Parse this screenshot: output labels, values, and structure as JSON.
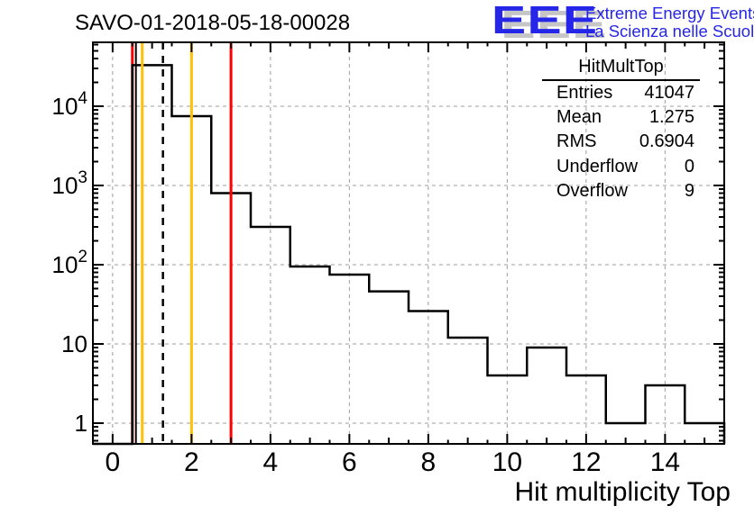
{
  "page": {
    "title": "SAVO-01-2018-05-18-00028"
  },
  "logo": {
    "acronym": "EEE",
    "line1": "Extreme Energy Events",
    "line2": "La Scienza nelle Scuole",
    "blue": "#2626e8",
    "shadow": "#c6c6c6"
  },
  "stats": {
    "title": "HitMultTop",
    "rows": [
      {
        "label": "Entries",
        "value": "41047"
      },
      {
        "label": "Mean",
        "value": "1.275"
      },
      {
        "label": "RMS",
        "value": "0.6904"
      },
      {
        "label": "Underflow",
        "value": "0"
      },
      {
        "label": "Overflow",
        "value": "9"
      }
    ]
  },
  "chart_data": {
    "type": "bar",
    "subtype": "step-histogram",
    "title": "SAVO-01-2018-05-18-00028",
    "xlabel": "Hit multiplicity Top",
    "ylabel": "",
    "log_y": true,
    "xlim": [
      -0.5,
      15.5
    ],
    "ylim": [
      0.55,
      64000
    ],
    "grid": true,
    "bin_width": 1,
    "x_centers": [
      0,
      1,
      2,
      3,
      4,
      5,
      6,
      7,
      8,
      9,
      10,
      11,
      12,
      13,
      14,
      15
    ],
    "values": [
      0,
      33000,
      7500,
      800,
      300,
      95,
      75,
      46,
      26,
      12,
      4,
      9,
      4,
      1,
      3,
      1
    ],
    "hist_color": "#000000",
    "grid_color": "#9e9e9e",
    "x_major_ticks": [
      0,
      2,
      4,
      6,
      8,
      10,
      12,
      14
    ],
    "x_tick_labels": [
      "0",
      "2",
      "4",
      "6",
      "8",
      "10",
      "12",
      "14"
    ],
    "y_major_ticks": [
      1,
      10,
      100,
      1000,
      10000
    ],
    "y_tick_labels": [
      {
        "v": 1,
        "base": "1",
        "exp": ""
      },
      {
        "v": 10,
        "base": "10",
        "exp": ""
      },
      {
        "v": 100,
        "base": "10",
        "exp": "2"
      },
      {
        "v": 1000,
        "base": "10",
        "exp": "3"
      },
      {
        "v": 10000,
        "base": "10",
        "exp": "4"
      }
    ],
    "marker_lines": [
      {
        "x": 0.5,
        "color": "#ff0000",
        "style": "solid",
        "width": 3,
        "layer": "below",
        "name": "red-cut-line-low"
      },
      {
        "x": 0.59,
        "color": "#000000",
        "style": "solid",
        "width": 2,
        "layer": "below",
        "name": "black-marker-line"
      },
      {
        "x": 0.75,
        "color": "#ffc107",
        "style": "solid",
        "width": 3,
        "layer": "above",
        "name": "orange-cut-line-low"
      },
      {
        "x": 1.275,
        "color": "#000000",
        "style": "dashed",
        "width": 2.5,
        "layer": "above",
        "name": "mean-dashed-line"
      },
      {
        "x": 2.0,
        "color": "#ffc107",
        "style": "solid",
        "width": 3,
        "layer": "above",
        "name": "orange-cut-line-high"
      },
      {
        "x": 3.0,
        "color": "#ff0000",
        "style": "solid",
        "width": 3,
        "layer": "above",
        "name": "red-cut-line-high"
      }
    ]
  }
}
